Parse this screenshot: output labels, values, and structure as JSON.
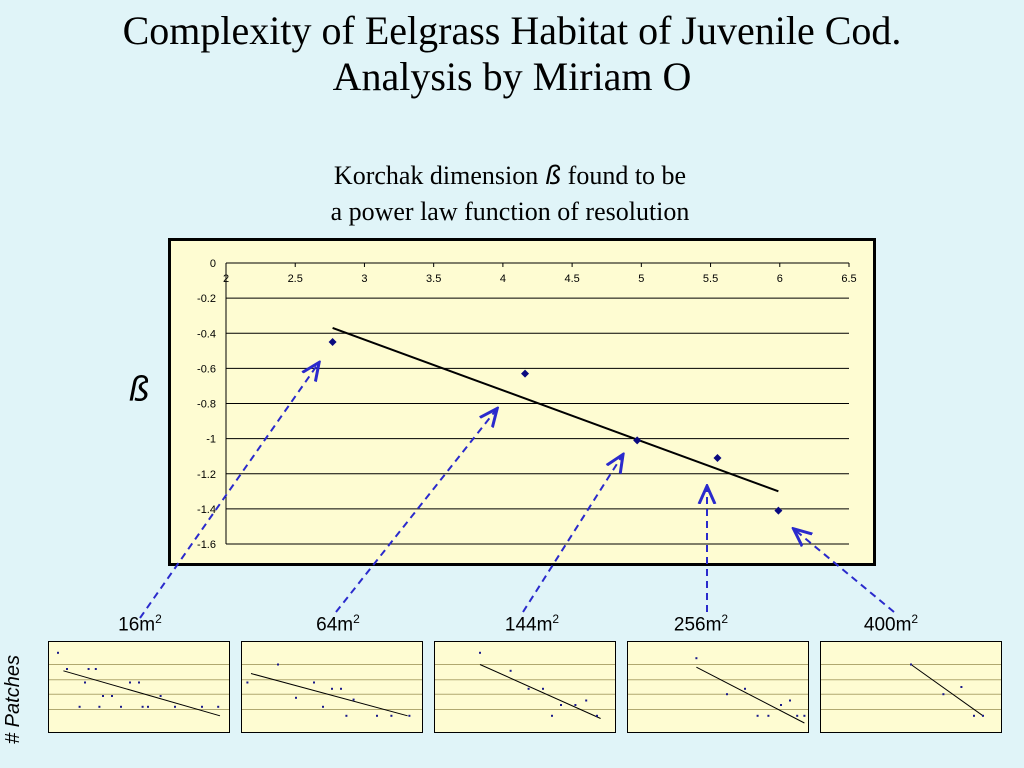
{
  "title_line1": "Complexity of Eelgrass Habitat of Juvenile Cod.",
  "title_line2": "Analysis by Miriam O",
  "subtitle": {
    "part1": "Korchak dimension",
    "beta_symbol": "ß",
    "part2": "found to be",
    "line2": "a power law function of resolution"
  },
  "y_axis_symbol": "ß",
  "patches_label": "# Patches",
  "chart_data": [
    {
      "type": "scatter",
      "x": [
        2.77,
        4.16,
        4.97,
        5.55,
        5.99
      ],
      "y": [
        -0.45,
        -0.63,
        -1.01,
        -1.11,
        -1.41
      ],
      "trendline": {
        "x": [
          2.77,
          5.99
        ],
        "y": [
          -0.37,
          -1.3
        ]
      },
      "xticks": [
        "2",
        "2.5",
        "3",
        "3.5",
        "4",
        "4.5",
        "5",
        "5.5",
        "6",
        "6.5"
      ],
      "yticks": [
        "0",
        "-0.2",
        "-0.4",
        "-0.6",
        "-0.8",
        "-1",
        "-1.2",
        "-1.4",
        "-1.6"
      ],
      "xlim": [
        2,
        6.5
      ],
      "ylim": [
        -1.6,
        0
      ],
      "grid": "horizontal",
      "marker_color": "#0a0a80"
    },
    {
      "type": "scatter",
      "label": "16m",
      "label_sup": "2",
      "x": [
        0.05,
        0.1,
        0.2,
        0.22,
        0.26,
        0.3,
        0.35,
        0.45,
        0.5,
        0.52,
        0.55,
        0.62,
        0.7,
        0.85,
        0.94,
        0.4,
        0.17,
        0.28
      ],
      "y": [
        0.88,
        0.7,
        0.55,
        0.7,
        0.7,
        0.4,
        0.4,
        0.55,
        0.55,
        0.28,
        0.28,
        0.4,
        0.28,
        0.28,
        0.28,
        0.28,
        0.28,
        0.28
      ],
      "trendline": {
        "x": [
          0.08,
          0.95
        ],
        "y": [
          0.68,
          0.18
        ]
      }
    },
    {
      "type": "scatter",
      "label": "64m",
      "label_sup": "2",
      "x": [
        0.03,
        0.2,
        0.3,
        0.4,
        0.45,
        0.5,
        0.55,
        0.58,
        0.62,
        0.75,
        0.83,
        0.93
      ],
      "y": [
        0.55,
        0.75,
        0.38,
        0.55,
        0.28,
        0.48,
        0.48,
        0.18,
        0.36,
        0.18,
        0.18,
        0.18
      ],
      "trendline": {
        "x": [
          0.05,
          0.92
        ],
        "y": [
          0.65,
          0.18
        ]
      }
    },
    {
      "type": "scatter",
      "label": "144m",
      "label_sup": "2",
      "x": [
        0.25,
        0.42,
        0.52,
        0.6,
        0.65,
        0.7,
        0.78,
        0.84,
        0.9
      ],
      "y": [
        0.88,
        0.68,
        0.48,
        0.48,
        0.18,
        0.3,
        0.3,
        0.35,
        0.18
      ],
      "trendline": {
        "x": [
          0.25,
          0.92
        ],
        "y": [
          0.75,
          0.15
        ]
      }
    },
    {
      "type": "scatter",
      "label": "256m",
      "label_sup": "2",
      "x": [
        0.38,
        0.55,
        0.65,
        0.72,
        0.78,
        0.85,
        0.9,
        0.94,
        0.98
      ],
      "y": [
        0.82,
        0.42,
        0.48,
        0.18,
        0.18,
        0.3,
        0.35,
        0.18,
        0.18
      ],
      "trendline": {
        "x": [
          0.38,
          0.98
        ],
        "y": [
          0.72,
          0.1
        ]
      }
    },
    {
      "type": "scatter",
      "label": "400m",
      "label_sup": "2",
      "x": [
        0.5,
        0.68,
        0.78,
        0.85,
        0.9
      ],
      "y": [
        0.75,
        0.42,
        0.5,
        0.18,
        0.18
      ],
      "trendline": {
        "x": [
          0.5,
          0.9
        ],
        "y": [
          0.75,
          0.18
        ]
      }
    }
  ]
}
